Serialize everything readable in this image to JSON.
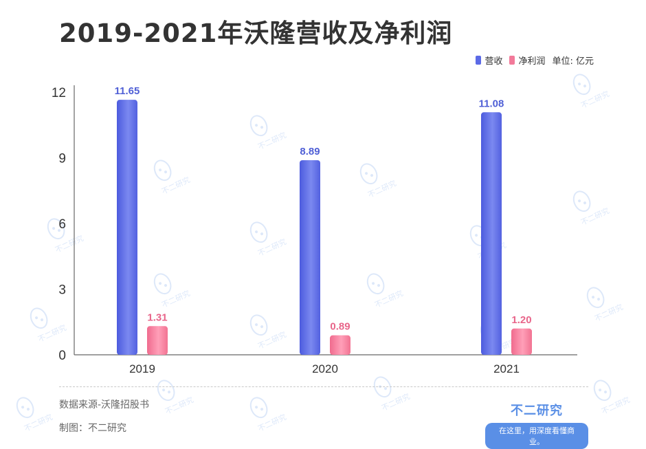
{
  "title": "2019-2021年沃隆营收及净利润",
  "legend": {
    "items": [
      {
        "label": "营收",
        "color": "#5b6ae6"
      },
      {
        "label": "净利润",
        "color": "#f27a9a"
      }
    ],
    "unit": "单位: 亿元"
  },
  "chart_data": {
    "type": "bar",
    "categories": [
      "2019",
      "2020",
      "2021"
    ],
    "series": [
      {
        "name": "营收",
        "values": [
          11.65,
          8.89,
          11.08
        ],
        "color": "#5b6ae6",
        "label_color": "#4f5fd6"
      },
      {
        "name": "净利润",
        "values": [
          1.31,
          0.89,
          1.2
        ],
        "color": "#f27a9a",
        "label_color": "#e8658a"
      }
    ],
    "value_labels": [
      [
        "11.65",
        "8.89",
        "11.08"
      ],
      [
        "1.31",
        "0.89",
        "1.20"
      ]
    ],
    "yticks": [
      "0",
      "3",
      "6",
      "9",
      "12"
    ],
    "ylim": [
      0,
      12
    ],
    "grid": false
  },
  "footer": {
    "source": "数据来源-沃隆招股书",
    "credit": "制图：不二研究"
  },
  "brand": {
    "name": "不二研究",
    "slogan": "在这里，用深度看懂商业。"
  },
  "watermark_text": "不二研究"
}
